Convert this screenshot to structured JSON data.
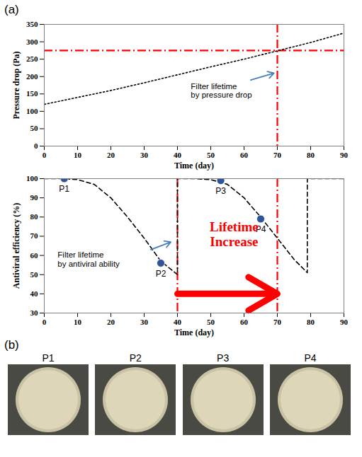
{
  "chart_data": [
    {
      "type": "line",
      "panel": "(a)",
      "x_label": "Time (day)",
      "y_label": "Pressure drop (Pa)",
      "xlim": [
        0,
        90
      ],
      "xticks": [
        0,
        10,
        20,
        30,
        40,
        50,
        60,
        70,
        80,
        90
      ],
      "ylim": [
        0,
        350
      ],
      "yticks": [
        0,
        50,
        100,
        150,
        200,
        250,
        300,
        350
      ],
      "series": [
        {
          "color": "#000000",
          "line_style": "dotted",
          "x": [
            0,
            10,
            20,
            30,
            40,
            50,
            60,
            70,
            80,
            90
          ],
          "values": [
            120,
            140,
            160,
            182,
            205,
            228,
            250,
            274,
            298,
            325
          ]
        }
      ],
      "reference_lines": [
        {
          "axis": "y",
          "value": 275,
          "color": "#ff0000",
          "line_style": "dashdot"
        },
        {
          "axis": "x",
          "value": 70,
          "color": "#ff0000",
          "line_style": "dashdot"
        }
      ],
      "annotations": [
        {
          "text": "Filter lifetime\nby pressure drop",
          "x": 44,
          "y": 160,
          "arrow_from": [
            62,
            190
          ],
          "arrow_to": [
            69,
            210
          ],
          "colors": [
            "#000000",
            "#4a7ebb"
          ]
        }
      ]
    },
    {
      "type": "line",
      "x_label": "Time (day)",
      "y_label": "Antiviral efficiency (%)",
      "xlim": [
        0,
        90
      ],
      "xticks": [
        0,
        10,
        20,
        30,
        40,
        50,
        60,
        70,
        80,
        90
      ],
      "ylim": [
        30,
        100
      ],
      "yticks": [
        30,
        40,
        50,
        60,
        70,
        80,
        90,
        100
      ],
      "series": [
        {
          "color": "#000000",
          "line_style": "dashed",
          "x": [
            0,
            5,
            10,
            15,
            20,
            25,
            30,
            35,
            40,
            40,
            45,
            50,
            55,
            60,
            65,
            70,
            75,
            79,
            79,
            85,
            90
          ],
          "values": [
            100,
            100,
            99.5,
            97,
            90,
            80,
            69,
            57,
            50,
            100,
            100,
            99.5,
            97,
            90,
            80,
            69,
            58,
            51,
            100,
            100,
            100
          ]
        }
      ],
      "points": {
        "color": "#2f5597",
        "marker": "circle",
        "labels": [
          "P1",
          "P2",
          "P3",
          "P4"
        ],
        "x": [
          6,
          35,
          53,
          65
        ],
        "y": [
          100,
          56,
          99,
          79
        ]
      },
      "reference_lines": [
        {
          "axis": "x",
          "value": 40,
          "color": "#ff0000",
          "line_style": "dashdot"
        },
        {
          "axis": "x",
          "value": 70,
          "color": "#ff0000",
          "line_style": "dashdot"
        }
      ],
      "annotations": [
        {
          "text": "Filter lifetime\nby antiviral ability",
          "x": 4,
          "y": 58,
          "arrow_from": [
            32,
            63
          ],
          "arrow_to": [
            38,
            67
          ],
          "colors": [
            "#000000",
            "#4a7ebb"
          ]
        },
        {
          "text": "Lifetime\nIncrease",
          "x": 57,
          "y": 71,
          "arrow_from": [
            40,
            40
          ],
          "arrow_to": [
            70,
            40
          ],
          "colors": [
            "#ff0000",
            "#ff0000"
          ]
        }
      ]
    }
  ],
  "photos": {
    "panel": "(b)",
    "labels": [
      "P1",
      "P2",
      "P3",
      "P4"
    ]
  }
}
